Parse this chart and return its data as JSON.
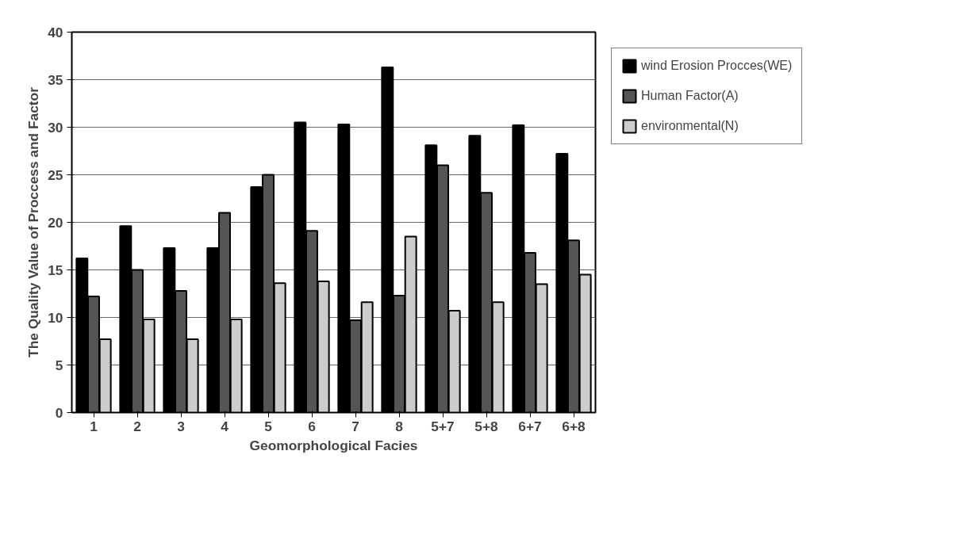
{
  "chart_data": {
    "type": "bar",
    "xlabel": "Geomorphological Facies",
    "ylabel": "The Quality Value of Proccess and Factor",
    "categories": [
      "1",
      "2",
      "3",
      "4",
      "5",
      "6",
      "7",
      "8",
      "5+7",
      "5+8",
      "6+7",
      "6+8"
    ],
    "series": [
      {
        "name": "wind Erosion Procces(WE)",
        "color": "#000000",
        "values": [
          16.2,
          19.6,
          17.3,
          17.3,
          23.7,
          30.5,
          30.3,
          36.3,
          28.1,
          29.1,
          30.2,
          27.2
        ]
      },
      {
        "name": "Human Factor(A)",
        "color": "#555555",
        "values": [
          12.2,
          15.0,
          12.8,
          21.0,
          25.0,
          19.1,
          9.7,
          12.3,
          26.0,
          23.1,
          16.8,
          18.1
        ]
      },
      {
        "name": "environmental(N)",
        "color": "#cccccc",
        "values": [
          7.7,
          9.8,
          7.7,
          9.8,
          13.6,
          13.8,
          11.6,
          18.5,
          10.7,
          11.6,
          13.5,
          14.5
        ]
      }
    ],
    "ylim": [
      0,
      40
    ],
    "yticks": [
      0,
      5,
      10,
      15,
      20,
      25,
      30,
      35,
      40
    ],
    "grid": "y",
    "legend": "right"
  }
}
